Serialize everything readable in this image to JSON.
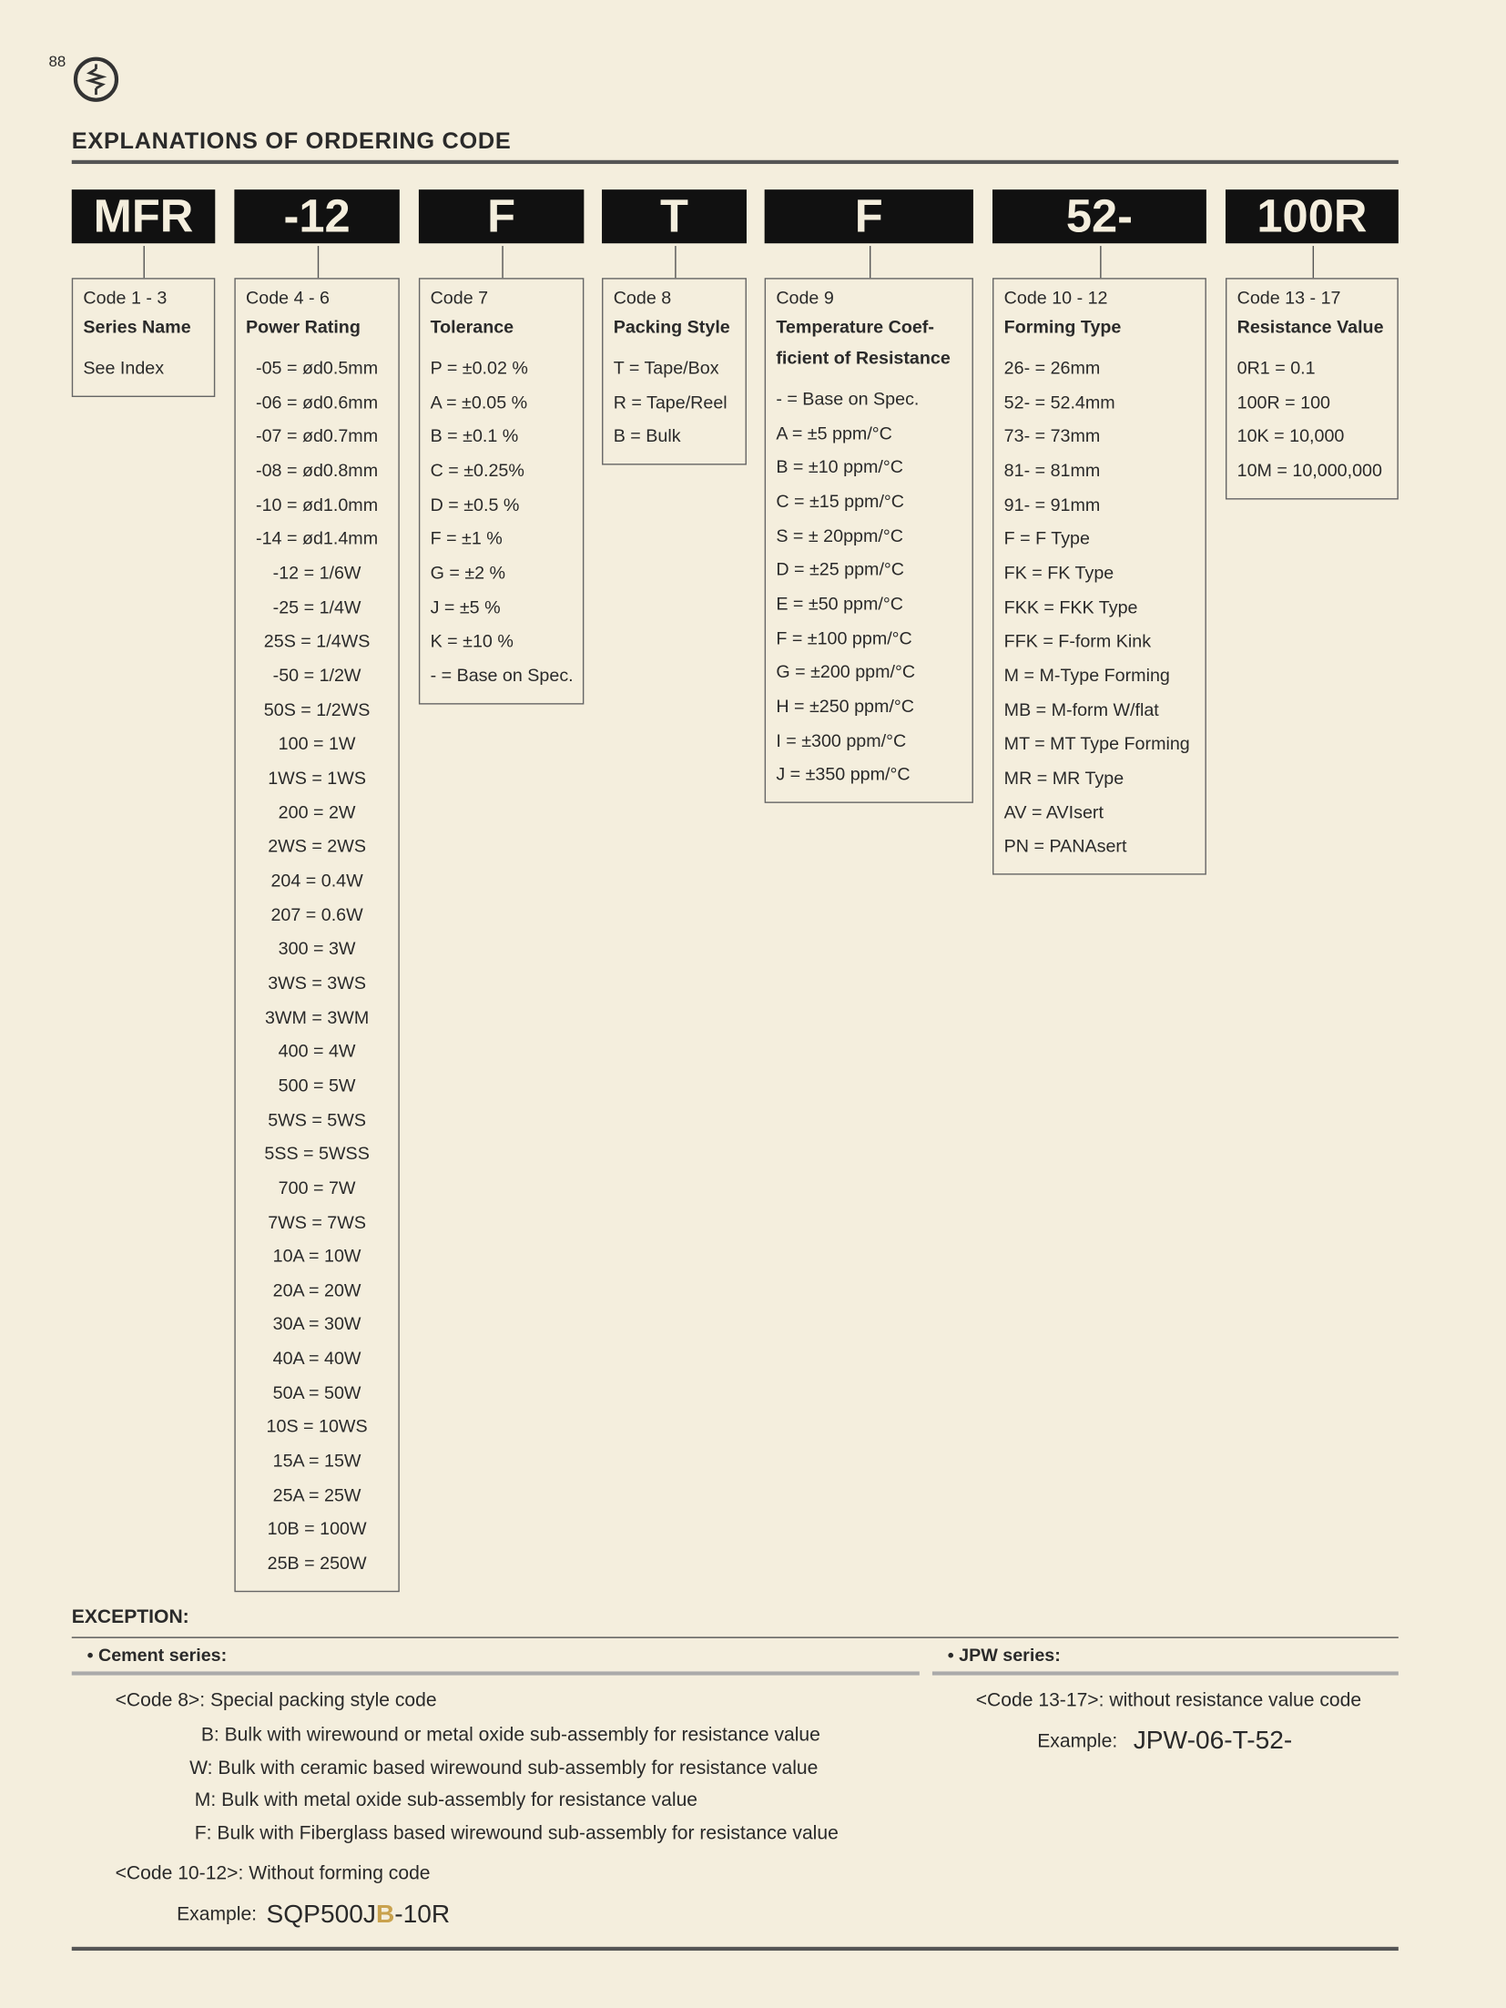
{
  "page_number": "88",
  "title": "EXPLANATIONS OF ORDERING CODE",
  "codes": [
    {
      "code": "MFR",
      "label": "Code 1 - 3",
      "heading": [
        "Series Name"
      ],
      "items": [
        "See Index"
      ]
    },
    {
      "code": "-12",
      "label": "Code 4 - 6",
      "heading": [
        "Power Rating"
      ],
      "items": [
        "-05 = ød0.5mm",
        "-06 = ød0.6mm",
        "-07 = ød0.7mm",
        "-08 = ød0.8mm",
        "-10 = ød1.0mm",
        "-14 = ød1.4mm",
        "-12 = 1/6W",
        "-25 = 1/4W",
        "25S = 1/4WS",
        "-50 = 1/2W",
        "50S = 1/2WS",
        "100 = 1W",
        "1WS = 1WS",
        "200 = 2W",
        "2WS = 2WS",
        "204 = 0.4W",
        "207 = 0.6W",
        "300 = 3W",
        "3WS = 3WS",
        "3WM = 3WM",
        "400 = 4W",
        "500 = 5W",
        "5WS = 5WS",
        "5SS = 5WSS",
        "700 = 7W",
        "7WS = 7WS",
        "10A = 10W",
        "20A = 20W",
        "30A = 30W",
        "40A = 40W",
        "50A = 50W",
        "10S = 10WS",
        "15A = 15W",
        "25A = 25W",
        "10B = 100W",
        "25B = 250W"
      ]
    },
    {
      "code": "F",
      "label": "Code 7",
      "heading": [
        "Tolerance"
      ],
      "items": [
        "P = ±0.02 %",
        "A = ±0.05 %",
        "B = ±0.1 %",
        "C = ±0.25%",
        "D = ±0.5 %",
        "F = ±1 %",
        "G = ±2 %",
        "J = ±5 %",
        "K = ±10 %",
        "- = Base on Spec."
      ]
    },
    {
      "code": "T",
      "label": "Code 8",
      "heading": [
        "Packing Style"
      ],
      "items": [
        "T = Tape/Box",
        "R = Tape/Reel",
        "B = Bulk"
      ]
    },
    {
      "code": "F",
      "label": "Code 9",
      "heading": [
        "Temperature Coef-",
        "ficient of Resistance"
      ],
      "items": [
        "- = Base on Spec.",
        "A = ±5 ppm/°C",
        "B = ±10 ppm/°C",
        "C = ±15 ppm/°C",
        "S = ± 20ppm/°C",
        "D = ±25 ppm/°C",
        "E = ±50 ppm/°C",
        "F = ±100 ppm/°C",
        "G = ±200 ppm/°C",
        "H = ±250 ppm/°C",
        "I = ±300 ppm/°C",
        "J = ±350 ppm/°C"
      ]
    },
    {
      "code": "52-",
      "label": "Code 10 - 12",
      "heading": [
        "Forming Type"
      ],
      "items": [
        "26- = 26mm",
        "52- = 52.4mm",
        "73- = 73mm",
        "81- = 81mm",
        "91- = 91mm",
        "F = F Type",
        "FK = FK Type",
        "FKK = FKK Type",
        "FFK = F-form Kink",
        "M = M-Type Forming",
        "MB = M-form W/flat",
        "MT = MT Type Forming",
        "MR = MR Type",
        "AV = AVIsert",
        "PN = PANAsert"
      ]
    },
    {
      "code": "100R",
      "label": "Code 13 - 17",
      "heading": [
        "Resistance Value"
      ],
      "items": [
        "0R1 = 0.1",
        "100R = 100",
        "10K = 10,000",
        "10M = 10,000,000"
      ]
    }
  ],
  "exception": {
    "title": "EXCEPTION:",
    "cement": {
      "heading": "• Cement series:",
      "code8": "<Code 8>: Special packing style code",
      "lines": [
        "B: Bulk with wirewound or metal oxide sub-assembly for resistance value",
        "W: Bulk with ceramic based wirewound sub-assembly for resistance value",
        "M: Bulk with metal oxide sub-assembly for resistance value",
        "F: Bulk with Fiberglass based wirewound sub-assembly for resistance value"
      ],
      "code10": "<Code 10-12>: Without forming code",
      "example_label": "Example:",
      "example_parts": [
        "SQP500J",
        "B",
        "-10R"
      ]
    },
    "jpw": {
      "heading": "• JPW series:",
      "code13": "<Code 13-17>: without resistance value code",
      "example_label": "Example:",
      "example": "JPW-06-T-52-"
    }
  }
}
